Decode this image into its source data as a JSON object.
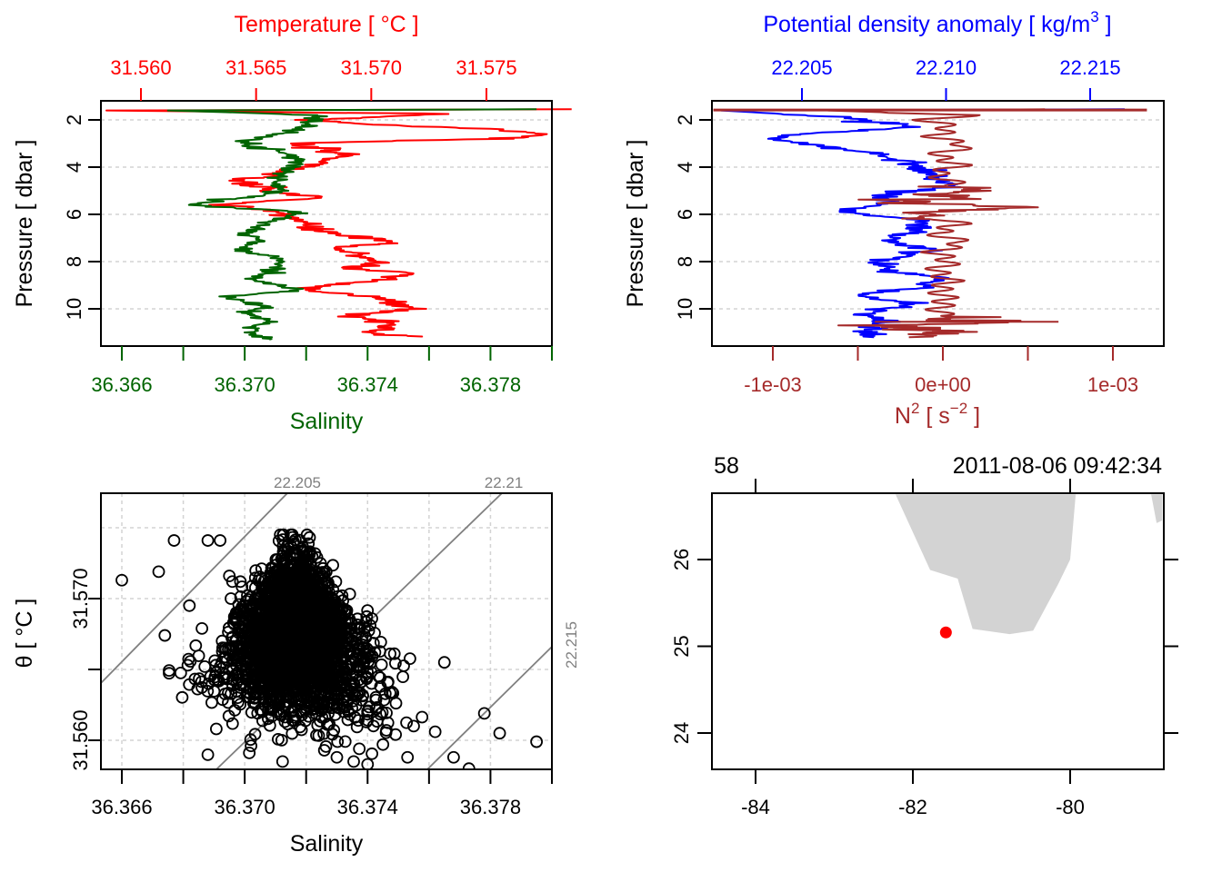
{
  "chart_data": [
    {
      "panel": "top-left",
      "type": "line",
      "title": "",
      "y_axis": {
        "label": "Pressure [ dbar ]",
        "range": [
          11.5,
          1.3
        ],
        "ticks": [
          2,
          4,
          6,
          8,
          10
        ],
        "reversed": true,
        "grid": true
      },
      "top_axis": {
        "label": "Temperature [ °C ]",
        "color": "#ff0000",
        "range": [
          31.5578,
          31.5794
        ],
        "ticks": [
          "31.560",
          "31.565",
          "31.570",
          "31.575"
        ],
        "tick_values": [
          31.56,
          31.565,
          31.57,
          31.575
        ]
      },
      "bottom_axis": {
        "label": "Salinity",
        "color": "#006400",
        "range": [
          36.3653,
          36.38
        ],
        "ticks": [
          "36.366",
          "36.370",
          "36.374",
          "36.378"
        ],
        "tick_values": [
          36.366,
          36.368,
          36.37,
          36.372,
          36.374,
          36.376,
          36.378,
          36.38
        ],
        "labeled_ticks": [
          36.366,
          36.37,
          36.374,
          36.378
        ]
      },
      "series": [
        {
          "name": "Temperature",
          "color": "#ff0000",
          "axis": "top",
          "pressure": [
            1.55,
            1.6,
            1.75,
            2.0,
            2.2,
            2.4,
            2.6,
            2.7,
            2.8,
            2.9,
            3.0,
            3.2,
            3.5,
            4.0,
            4.3,
            4.6,
            5.0,
            5.3,
            5.6,
            5.9,
            6.2,
            6.6,
            7.0,
            7.2,
            7.4,
            7.6,
            8.0,
            8.3,
            8.5,
            8.8,
            9.0,
            9.2,
            9.5,
            9.8,
            10.0,
            10.3,
            10.6,
            10.8,
            11.0,
            11.2
          ],
          "values": [
            31.5787,
            31.5585,
            31.5732,
            31.5675,
            31.5702,
            31.5755,
            31.5778,
            31.577,
            31.5755,
            31.5702,
            31.5665,
            31.5675,
            31.569,
            31.5672,
            31.5655,
            31.5642,
            31.5655,
            31.5678,
            31.5632,
            31.566,
            31.5668,
            31.5673,
            31.5695,
            31.571,
            31.5682,
            31.569,
            31.5705,
            31.569,
            31.572,
            31.5702,
            31.568,
            31.5675,
            31.57,
            31.5712,
            31.5718,
            31.569,
            31.571,
            31.5705,
            31.57,
            31.5722
          ]
        },
        {
          "name": "Salinity",
          "color": "#006400",
          "axis": "bottom",
          "pressure": [
            1.55,
            1.6,
            1.8,
            2.2,
            2.5,
            2.8,
            3.1,
            3.4,
            3.8,
            4.2,
            4.6,
            5.0,
            5.3,
            5.6,
            5.9,
            6.3,
            6.8,
            7.1,
            7.5,
            7.9,
            8.3,
            8.8,
            9.2,
            9.5,
            9.9,
            10.2,
            10.5,
            10.8,
            11.1,
            11.3
          ],
          "values": [
            36.3795,
            36.3675,
            36.3725,
            36.372,
            36.3715,
            36.3705,
            36.37,
            36.3715,
            36.3718,
            36.3713,
            36.371,
            36.3712,
            36.37,
            36.3682,
            36.3718,
            36.371,
            36.37,
            36.3705,
            36.3698,
            36.3712,
            36.371,
            36.3703,
            36.3718,
            36.3693,
            36.3707,
            36.37,
            36.3708,
            36.3702,
            36.3704,
            36.3708
          ]
        }
      ]
    },
    {
      "panel": "top-right",
      "type": "line",
      "y_axis": {
        "label": "Pressure [ dbar ]",
        "range": [
          11.5,
          1.3
        ],
        "ticks": [
          2,
          4,
          6,
          8,
          10
        ],
        "reversed": true,
        "grid": true
      },
      "top_axis": {
        "label": "Potential density anomaly [ kg/m³ ]",
        "label_main": "Potential density anomaly [ kg/m",
        "label_sup": "3",
        "label_tail": " ]",
        "color": "#0000ff",
        "range": [
          22.2018,
          22.2168
        ],
        "ticks": [
          "22.205",
          "22.210",
          "22.215"
        ],
        "tick_values": [
          22.205,
          22.21,
          22.215
        ]
      },
      "bottom_axis": {
        "label": "N² [ s⁻² ]",
        "label_main": "N",
        "label_sup": "2",
        "label_mid": " [ s",
        "label_sup2": "−2",
        "label_tail": " ]",
        "color": "#a52a2a",
        "range": [
          -0.00143,
          0.00123
        ],
        "ticks": [
          "-1e-03",
          "0e+00",
          "1e-03"
        ],
        "tick_values": [
          -0.001,
          -0.0005,
          0.0,
          0.0005,
          0.001
        ],
        "labeled_ticks": [
          -0.001,
          0.0,
          0.001
        ]
      },
      "series": [
        {
          "name": "Potential density anomaly",
          "color": "#0000ff",
          "axis": "top",
          "pressure": [
            1.55,
            1.6,
            1.9,
            2.3,
            2.6,
            2.8,
            3.0,
            3.3,
            3.6,
            4.0,
            4.4,
            4.8,
            5.2,
            5.5,
            5.9,
            6.3,
            6.7,
            7.1,
            7.5,
            8.0,
            8.4,
            8.7,
            9.1,
            9.4,
            9.8,
            10.2,
            10.6,
            10.9,
            11.2
          ],
          "values": [
            22.2162,
            22.2022,
            22.2065,
            22.209,
            22.2048,
            22.204,
            22.205,
            22.2068,
            22.2082,
            22.2092,
            22.2096,
            22.2102,
            22.2078,
            22.208,
            22.2065,
            22.2092,
            22.209,
            22.2078,
            22.2095,
            22.2075,
            22.2082,
            22.2098,
            22.2092,
            22.2068,
            22.209,
            22.2072,
            22.2078,
            22.2074,
            22.2075
          ]
        },
        {
          "name": "N²",
          "color": "#a52a2a",
          "axis": "bottom",
          "pressure": [
            1.55,
            1.6,
            1.8,
            2.0,
            2.3,
            2.7,
            3.1,
            3.5,
            3.9,
            4.3,
            4.7,
            5.1,
            5.4,
            5.7,
            6.0,
            6.4,
            6.8,
            7.2,
            7.6,
            8.0,
            8.4,
            8.8,
            9.2,
            9.6,
            10.0,
            10.4,
            10.55,
            10.7,
            11.0,
            11.2
          ],
          "values": [
            0.0012,
            -0.00135,
            0.0003,
            -0.0002,
            0.0001,
            -0.0001,
            0.0003,
            -0.0001,
            0.0002,
            -0.0001,
            0.00015,
            0.00025,
            -0.0004,
            0.00055,
            -0.0002,
            0.0002,
            -0.0001,
            0.00025,
            -0.0001,
            0.0001,
            -0.0001,
            0.0001,
            -5e-05,
            5e-05,
            -5e-05,
            0.0,
            0.00068,
            -0.0006,
            0.00015,
            -0.0002
          ]
        }
      ]
    },
    {
      "panel": "bottom-left",
      "type": "scatter",
      "xlabel": "Salinity",
      "ylabel": "θ [ °C ]",
      "xlim": [
        36.3653,
        36.38
      ],
      "ylim": [
        31.5558,
        31.5753
      ],
      "x_ticks": [
        "36.366",
        "36.370",
        "36.374",
        "36.378"
      ],
      "x_tick_values": [
        36.366,
        36.368,
        36.37,
        36.372,
        36.374,
        36.376,
        36.378,
        36.38
      ],
      "y_ticks": [
        "31.560",
        "31.570"
      ],
      "y_tick_values": [
        31.56,
        31.565,
        31.57
      ],
      "grid": true,
      "isopycnals": [
        {
          "label": "22.205",
          "label_position": "top"
        },
        {
          "label": "22.21",
          "label_position": "top"
        },
        {
          "label": "22.215",
          "label_position": "right"
        }
      ],
      "marker": "open-circle",
      "points_description": "Dense cluster of several thousand points centered near S=36.3715, θ=31.567, plus scattered outliers",
      "outliers": [
        [
          36.366,
          31.5713
        ],
        [
          36.3672,
          31.5719
        ],
        [
          36.3677,
          31.5741
        ],
        [
          36.3674,
          31.5674
        ],
        [
          36.3688,
          31.5741
        ],
        [
          36.3692,
          31.5741
        ],
        [
          36.3682,
          31.5695
        ],
        [
          36.3687,
          31.5652
        ],
        [
          36.3692,
          31.5652
        ],
        [
          36.3695,
          31.5716
        ],
        [
          36.3696,
          31.5712
        ],
        [
          36.3765,
          31.5655
        ],
        [
          36.3762,
          31.5606
        ],
        [
          36.3778,
          31.5619
        ],
        [
          36.3783,
          31.5605
        ],
        [
          36.3795,
          31.5599
        ],
        [
          36.3773,
          31.558
        ],
        [
          36.3768,
          31.5588
        ],
        [
          36.3753,
          31.5588
        ],
        [
          36.374,
          31.5583
        ],
        [
          36.373,
          31.5588
        ],
        [
          36.3745,
          31.5597
        ],
        [
          36.3755,
          31.561
        ]
      ],
      "cluster": {
        "center": [
          36.3716,
          31.567
        ],
        "s_spread": 0.0012,
        "t_spread": 0.0045,
        "count": 2500
      }
    },
    {
      "panel": "bottom-right",
      "type": "map",
      "x_ticks": [
        "-84",
        "-82",
        "-80"
      ],
      "x_tick_values": [
        -84,
        -82,
        -80
      ],
      "y_ticks": [
        "24",
        "25",
        "26"
      ],
      "y_tick_values": [
        24,
        25,
        26
      ],
      "xlim": [
        -84.55,
        -78.83
      ],
      "ylim": [
        23.57,
        26.75
      ],
      "top_labels": {
        "left": "58",
        "right": "2011-08-06 09:42:34"
      },
      "top_tick_values": [
        -84,
        -82,
        -80
      ],
      "land_color": "#d3d3d3",
      "station": {
        "lon": -81.58,
        "lat": 25.16,
        "color": "#ff0000"
      },
      "coastlines": [
        [
          [
            -82.22,
            26.75
          ],
          [
            -81.78,
            25.88
          ],
          [
            -81.43,
            25.78
          ],
          [
            -81.24,
            25.2
          ],
          [
            -80.77,
            25.14
          ],
          [
            -80.47,
            25.18
          ],
          [
            -80.15,
            25.72
          ],
          [
            -80.0,
            26.0
          ],
          [
            -79.93,
            26.75
          ]
        ],
        [
          [
            -78.97,
            26.75
          ],
          [
            -78.83,
            26.75
          ],
          [
            -78.83,
            26.45
          ],
          [
            -78.9,
            26.42
          ]
        ]
      ]
    }
  ]
}
